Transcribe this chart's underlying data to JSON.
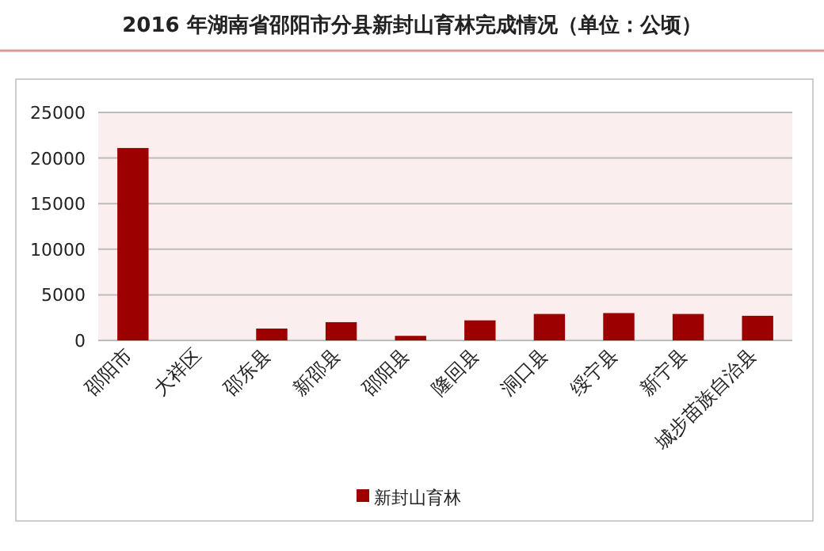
{
  "chart_data": {
    "type": "bar",
    "title": "2016 年湖南省邵阳市分县新封山育林完成情况（单位：公顷）",
    "categories": [
      "邵阳市",
      "大祥区",
      "邵东县",
      "新邵县",
      "邵阳县",
      "隆回县",
      "洞口县",
      "绥宁县",
      "新宁县",
      "城步苗族自治县"
    ],
    "series": [
      {
        "name": "新封山育林",
        "color": "#9c0000",
        "values": [
          21100,
          0,
          1300,
          2000,
          500,
          2200,
          2900,
          3000,
          2900,
          2700
        ]
      }
    ],
    "ylim": [
      0,
      25000
    ],
    "yticks": [
      0,
      5000,
      10000,
      15000,
      20000,
      25000
    ],
    "grid": "y",
    "legend": "bottom"
  }
}
